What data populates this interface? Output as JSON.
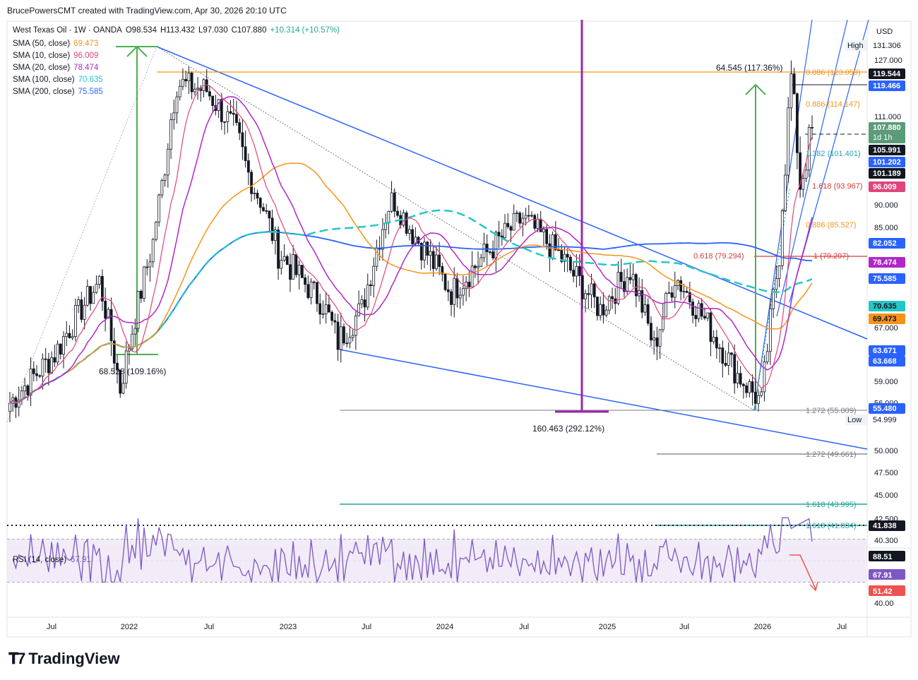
{
  "header": {
    "credit": "BrucePowersCMT created with TradingView.com, Apr 30, 2026 20:10 UTC"
  },
  "brand": {
    "logo_text": "TradingView"
  },
  "chart_data": {
    "type": "candlestick",
    "currency_label": "USD",
    "symbol_line": {
      "symbol": "West Texas Oil · 1W · OANDA",
      "open": "O98.534",
      "high": "H113.432",
      "low": "L97.030",
      "close": "C107.880",
      "change": "+10.314 (+10.57%)"
    },
    "indicators": [
      {
        "label": "SMA (50, close)",
        "value": "69.473",
        "color": "#f7931a"
      },
      {
        "label": "SMA (10, close)",
        "value": "96.009",
        "color": "#e0457b"
      },
      {
        "label": "SMA (20, close)",
        "value": "78.474",
        "color": "#b026c9"
      },
      {
        "label": "SMA (100, close)",
        "value": "70.635",
        "color": "#26c6c6"
      },
      {
        "label": "SMA (200, close)",
        "value": "75.585",
        "color": "#2962ff"
      }
    ],
    "price_axis_ticks": [
      "127.000",
      "111.000",
      "90.000",
      "85.000",
      "67.000",
      "59.000",
      "56.000",
      "50.000",
      "47.500",
      "45.000",
      "42.500",
      "40.300"
    ],
    "time_axis_labels": [
      "Jul",
      "2022",
      "Jul",
      "2023",
      "Jul",
      "2024",
      "Jul",
      "2025",
      "Jul",
      "2026",
      "Jul"
    ],
    "price_tags": [
      {
        "text": "131.306",
        "bg": "#ffffff",
        "fg": "#131722",
        "pre": "High"
      },
      {
        "text": "119.544",
        "bg": "#131722",
        "fg": "#ffffff"
      },
      {
        "text": "119.466",
        "bg": "#2962ff",
        "fg": "#ffffff"
      },
      {
        "text": "107.880",
        "bg": "#5b9b7a",
        "fg": "#ffffff",
        "sub": "1d 1h"
      },
      {
        "text": "105.991",
        "bg": "#131722",
        "fg": "#ffffff"
      },
      {
        "text": "101.202",
        "bg": "#2962ff",
        "fg": "#ffffff"
      },
      {
        "text": "101.189",
        "bg": "#131722",
        "fg": "#ffffff"
      },
      {
        "text": "96.009",
        "bg": "#e0457b",
        "fg": "#ffffff"
      },
      {
        "text": "82.052",
        "bg": "#2962ff",
        "fg": "#ffffff"
      },
      {
        "text": "78.474",
        "bg": "#b026c9",
        "fg": "#ffffff"
      },
      {
        "text": "75.585",
        "bg": "#2962ff",
        "fg": "#ffffff"
      },
      {
        "text": "70.635",
        "bg": "#26c6c6",
        "fg": "#131722"
      },
      {
        "text": "69.473",
        "bg": "#f7931a",
        "fg": "#131722"
      },
      {
        "text": "63.671",
        "bg": "#2962ff",
        "fg": "#ffffff"
      },
      {
        "text": "63.668",
        "bg": "#2962ff",
        "fg": "#ffffff"
      },
      {
        "text": "55.480",
        "bg": "#2962ff",
        "fg": "#ffffff"
      },
      {
        "text": "54.999",
        "bg": "#ffffff",
        "fg": "#131722",
        "pre": "Low"
      },
      {
        "text": "41.838",
        "bg": "#131722",
        "fg": "#ffffff"
      }
    ],
    "fib_labels": [
      {
        "text": "0.886 (123.059)",
        "color": "#f7931a"
      },
      {
        "text": "0.886 (114.147)",
        "color": "#f7931a"
      },
      {
        "text": "1.382 (101.401)",
        "color": "#26a6b6"
      },
      {
        "text": "1.618 (93.967)",
        "color": "#d63a3a"
      },
      {
        "text": "0.886 (85.527)",
        "color": "#f7931a"
      },
      {
        "text": "0.618 (79.294)",
        "color": "#d63a3a"
      },
      {
        "text": "1 (79.297)",
        "color": "#d63a3a"
      },
      {
        "text": "1.272 (55.009)",
        "color": "#787b86"
      },
      {
        "text": "1.272 (49.661)",
        "color": "#787b86"
      },
      {
        "text": "1.618 (43.995)",
        "color": "#26a69a"
      },
      {
        "text": "1.618 (41.834)",
        "color": "#26a69a"
      }
    ],
    "annotations": [
      {
        "text": "64.545 (117.36%)"
      },
      {
        "text": "68.528 (109.16%)"
      },
      {
        "text": "160.463 (292.12%)"
      }
    ],
    "rsi": {
      "label": "RSI (14, close)",
      "value": "67.91",
      "ticks": [
        "40.00"
      ],
      "tags": [
        {
          "text": "88.51",
          "bg": "#131722",
          "fg": "#ffffff"
        },
        {
          "text": "67.91",
          "bg": "#7e57c2",
          "fg": "#ffffff"
        },
        {
          "text": "51.42",
          "bg": "#ef5350",
          "fg": "#ffffff"
        }
      ]
    }
  }
}
